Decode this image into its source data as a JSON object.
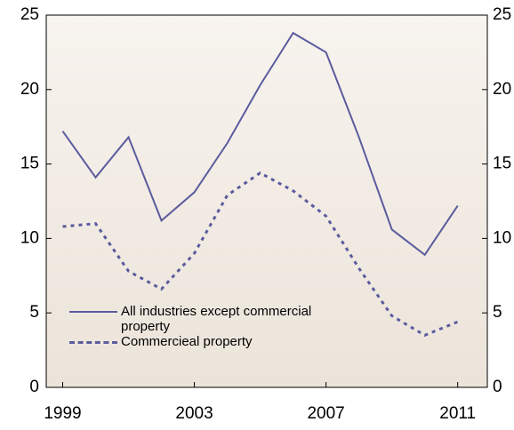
{
  "chart_data": {
    "type": "line",
    "x": [
      1999,
      2000,
      2001,
      2002,
      2003,
      2004,
      2005,
      2006,
      2007,
      2008,
      2009,
      2010,
      2011
    ],
    "series": [
      {
        "name": "All industries except commercial property",
        "color": "#5b5b9e",
        "style": "solid",
        "values": [
          17.2,
          14.1,
          16.8,
          11.2,
          13.1,
          16.4,
          20.3,
          23.8,
          22.5,
          16.8,
          10.6,
          8.9,
          12.2
        ]
      },
      {
        "name": "Commercieal property",
        "color": "#5b5b9e",
        "style": "dashed",
        "values": [
          10.8,
          11.0,
          7.8,
          6.6,
          9.0,
          12.9,
          14.4,
          13.2,
          11.5,
          8.0,
          4.8,
          3.5,
          4.4
        ]
      }
    ],
    "xlim": [
      1998.5,
      2011.9
    ],
    "xticks": [
      1999,
      2003,
      2007,
      2011
    ],
    "ylim": [
      0,
      25
    ],
    "yticks": [
      0,
      5,
      10,
      15,
      20,
      25
    ],
    "y2lim": [
      0,
      25
    ],
    "y2ticks": [
      0,
      5,
      10,
      15,
      20,
      25
    ],
    "legend": "lower-left"
  }
}
